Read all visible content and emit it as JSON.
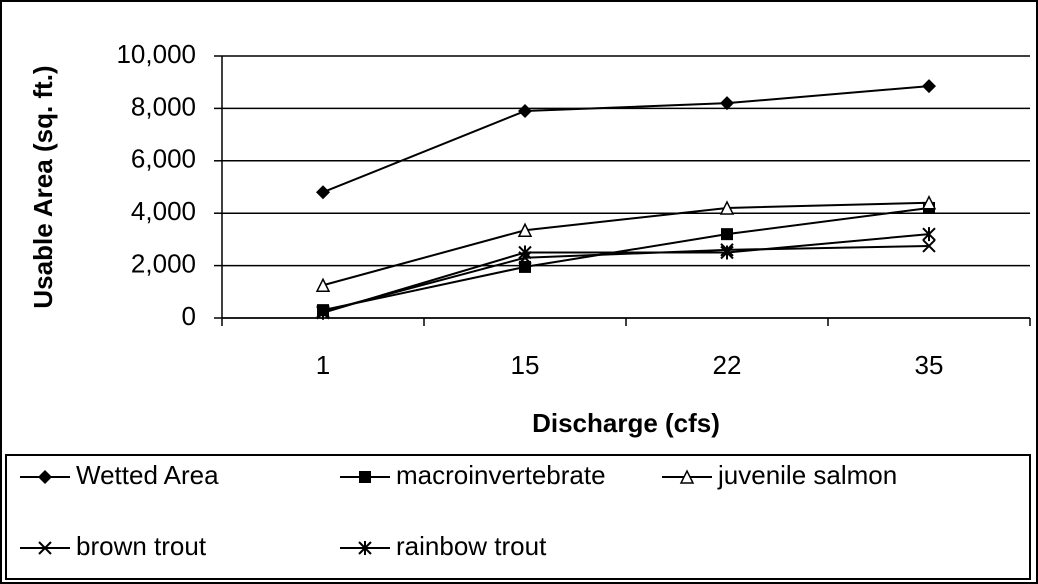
{
  "chart_data": {
    "type": "line",
    "x_label": "Discharge (cfs)",
    "y_label": "Usable Area (sq. ft.)",
    "categories": [
      "1",
      "15",
      "22",
      "35"
    ],
    "ylim": [
      0,
      10000
    ],
    "yticks": [
      {
        "value": 0,
        "label": "0"
      },
      {
        "value": 2000,
        "label": "2,000"
      },
      {
        "value": 4000,
        "label": "4,000"
      },
      {
        "value": 6000,
        "label": "6,000"
      },
      {
        "value": 8000,
        "label": "8,000"
      },
      {
        "value": 10000,
        "label": "10,000"
      }
    ],
    "grid": true,
    "legend": "bottom",
    "series": [
      {
        "name": "Wetted Area",
        "color": "#000000",
        "marker": "diamond",
        "values": [
          4800,
          7900,
          8200,
          8850
        ]
      },
      {
        "name": "macroinvertebrate",
        "color": "#000000",
        "marker": "square",
        "values": [
          300,
          1950,
          3200,
          4200
        ]
      },
      {
        "name": "juvenile salmon",
        "color": "#000000",
        "marker": "triangle",
        "values": [
          1250,
          3350,
          4200,
          4400
        ]
      },
      {
        "name": "brown trout",
        "color": "#000000",
        "marker": "x",
        "values": [
          250,
          2300,
          2600,
          2750
        ]
      },
      {
        "name": "rainbow trout",
        "color": "#000000",
        "marker": "asterisk",
        "values": [
          200,
          2500,
          2500,
          3200
        ]
      }
    ]
  }
}
